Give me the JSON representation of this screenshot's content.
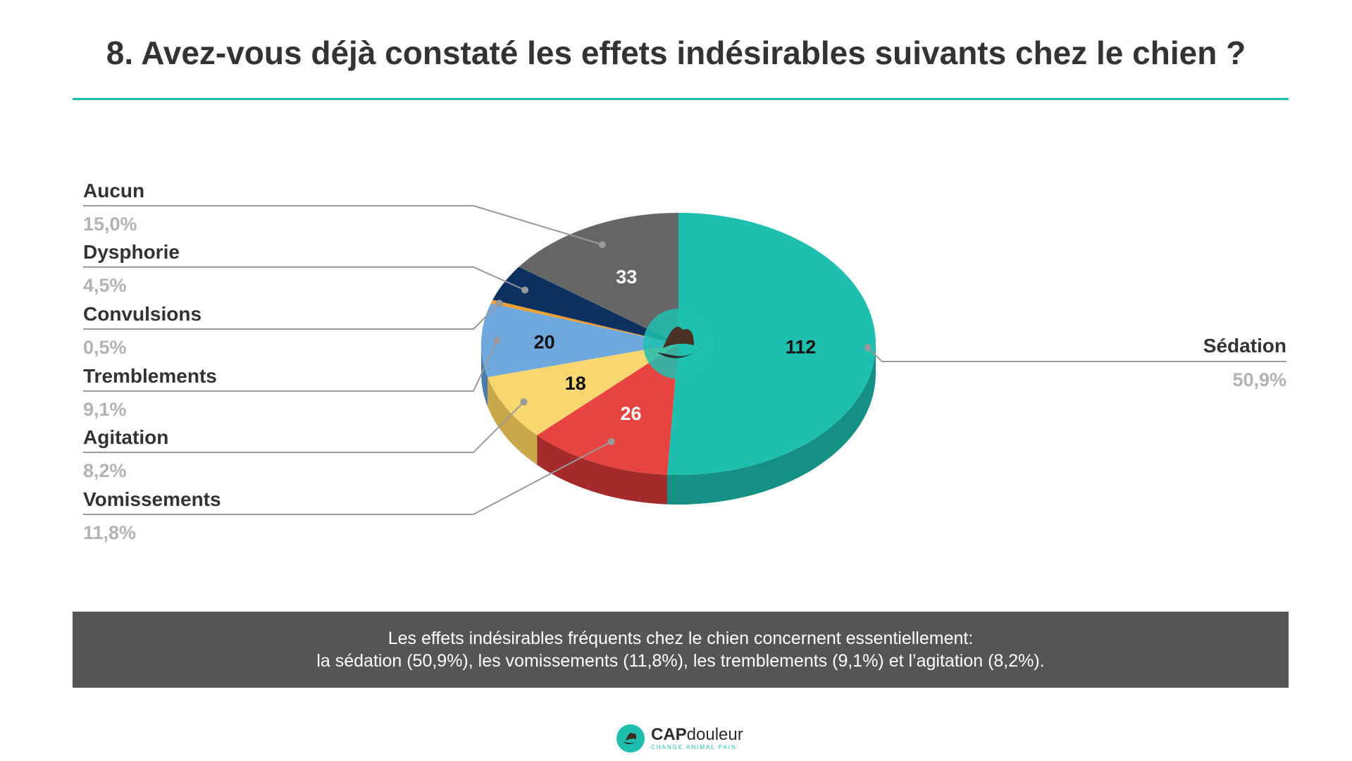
{
  "title": "8. Avez-vous déjà constaté les effets indésirables suivants chez le chien ?",
  "colors": {
    "accent": "#1fbfb0",
    "summary_bg": "#555555"
  },
  "summary": {
    "line1": "Les effets indésirables fréquents chez le chien concernent essentiellement:",
    "line2": "la sédation (50,9%), les vomissements (11,8%), les tremblements (9,1%) et l’agitation (8,2%)."
  },
  "brand": {
    "name_bold": "CAP",
    "name_regular": "douleur",
    "tagline": "CHANGE ANIMAL PAIN",
    "logo_icon": "paw-hand-logo-icon"
  },
  "chart_data": {
    "type": "pie",
    "style": "3d",
    "legend": "leader-lines",
    "slices": [
      {
        "label": "Sédation",
        "value": 112,
        "percent": "50,9%",
        "color": "#1fbfb0",
        "dark": "#149084"
      },
      {
        "label": "Vomissements",
        "value": 26,
        "percent": "11,8%",
        "color": "#e74341",
        "dark": "#a52a2b"
      },
      {
        "label": "Agitation",
        "value": 18,
        "percent": "8,2%",
        "color": "#f8d770",
        "dark": "#c9a84a"
      },
      {
        "label": "Tremblements",
        "value": 20,
        "percent": "9,1%",
        "color": "#6fa8dc",
        "dark": "#4a7aa8"
      },
      {
        "label": "Convulsions",
        "value": 1,
        "percent": "0,5%",
        "color": "#f0a030",
        "dark": "#b87820"
      },
      {
        "label": "Dysphorie",
        "value": 10,
        "percent": "4,5%",
        "color": "#0b3160",
        "dark": "#061c38"
      },
      {
        "label": "Aucun",
        "value": 33,
        "percent": "15,0%",
        "color": "#666666",
        "dark": "#444444"
      }
    ],
    "value_labels": [
      "112",
      "26",
      "18",
      "20",
      "",
      "",
      "33"
    ]
  }
}
